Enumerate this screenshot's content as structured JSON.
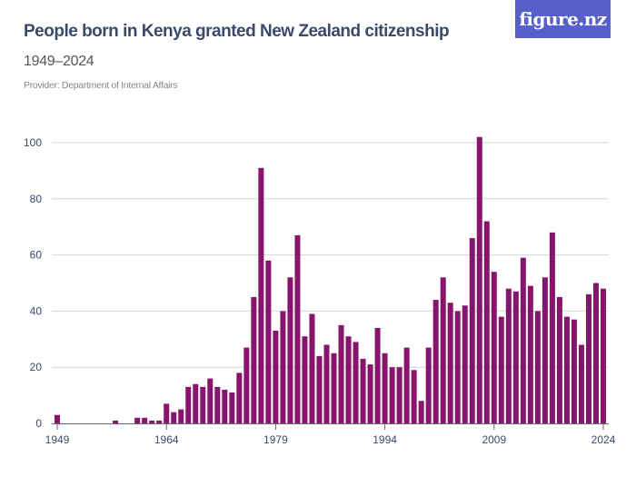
{
  "header": {
    "title": "People born in Kenya granted New Zealand citizenship",
    "subtitle": "1949–2024",
    "provider": "Provider: Department of Internal Affairs"
  },
  "logo": {
    "text": "figure.nz",
    "color": "#5660c8"
  },
  "chart_data": {
    "type": "bar",
    "title": "People born in Kenya granted New Zealand citizenship",
    "subtitle": "1949–2024",
    "xlabel": "",
    "ylabel": "",
    "ylim": [
      0,
      100
    ],
    "yticks": [
      0,
      20,
      40,
      60,
      80,
      100
    ],
    "xticks": [
      1949,
      1964,
      1979,
      1994,
      2009,
      2024
    ],
    "grid": true,
    "bar_color": "#85166c",
    "categories": [
      1949,
      1950,
      1951,
      1952,
      1953,
      1954,
      1955,
      1956,
      1957,
      1958,
      1959,
      1960,
      1961,
      1962,
      1963,
      1964,
      1965,
      1966,
      1967,
      1968,
      1969,
      1970,
      1971,
      1972,
      1973,
      1974,
      1975,
      1976,
      1977,
      1978,
      1979,
      1980,
      1981,
      1982,
      1983,
      1984,
      1985,
      1986,
      1987,
      1988,
      1989,
      1990,
      1991,
      1992,
      1993,
      1994,
      1995,
      1996,
      1997,
      1998,
      1999,
      2000,
      2001,
      2002,
      2003,
      2004,
      2005,
      2006,
      2007,
      2008,
      2009,
      2010,
      2011,
      2012,
      2013,
      2014,
      2015,
      2016,
      2017,
      2018,
      2019,
      2020,
      2021,
      2022,
      2023,
      2024
    ],
    "values": [
      3,
      0,
      0,
      0,
      0,
      0,
      0,
      0,
      1,
      0,
      0,
      2,
      2,
      1,
      1,
      7,
      4,
      5,
      13,
      14,
      13,
      16,
      13,
      12,
      11,
      18,
      27,
      45,
      91,
      58,
      33,
      40,
      52,
      67,
      31,
      39,
      24,
      28,
      25,
      35,
      31,
      29,
      23,
      21,
      34,
      25,
      20,
      20,
      27,
      19,
      8,
      27,
      44,
      52,
      43,
      40,
      42,
      66,
      102,
      72,
      54,
      38,
      48,
      47,
      59,
      49,
      40,
      52,
      68,
      45,
      38,
      37,
      28,
      46,
      50,
      48
    ]
  }
}
